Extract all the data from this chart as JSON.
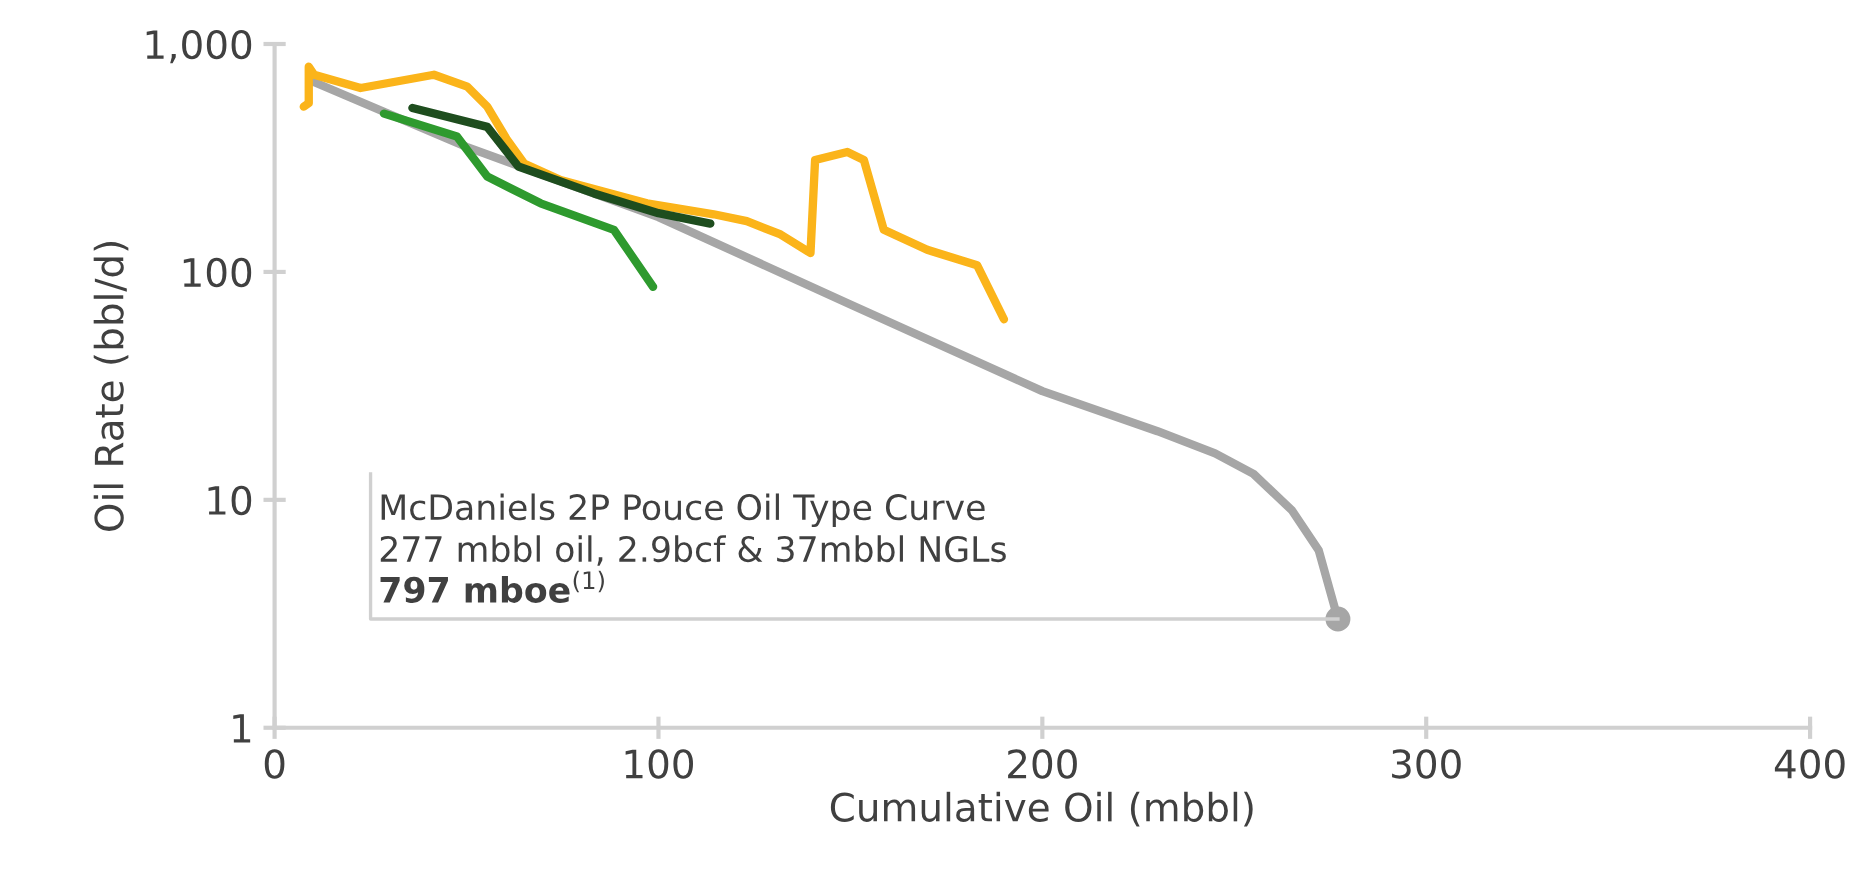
{
  "chart_data": {
    "type": "line",
    "xlabel": "Cumulative Oil (mbbl)",
    "ylabel": "Oil Rate (bbl/d)",
    "log": "y",
    "xlim": [
      0,
      400
    ],
    "xticks": [
      0,
      100,
      200,
      300,
      400
    ],
    "ylim": [
      1,
      1000
    ],
    "yticks": [
      1,
      10,
      100,
      {
        "value": 1000,
        "label": "1,000"
      }
    ],
    "grid": false,
    "legend": false,
    "series": [
      {
        "color": "#a6a6a6",
        "x": [
          9,
          50,
          100,
          150,
          200,
          230,
          245,
          255,
          265,
          272,
          277
        ],
        "values": [
          695,
          354,
          174,
          72,
          30,
          20,
          16,
          13,
          9,
          6,
          3
        ]
      },
      {
        "color": "#fbb41a",
        "x": [
          7.6,
          8.9,
          8.9,
          10.3,
          22.4,
          41.5,
          50.2,
          55.4,
          60.6,
          65,
          74.5,
          97,
          114.4,
          123,
          131.8,
          139.6,
          140.8,
          149.2,
          153.5,
          158.7,
          170,
          183,
          190
        ],
        "values": [
          531,
          550,
          795,
          733,
          641,
          733,
          650,
          531,
          379,
          299,
          253,
          200,
          179,
          167,
          146,
          121,
          310,
          336,
          310,
          153,
          125,
          107,
          62
        ]
      },
      {
        "color": "#1e4d1e",
        "x": [
          35.9,
          55.4,
          63.5,
          83.2,
          100,
          113.5
        ],
        "values": [
          524,
          433,
          290,
          221,
          181,
          163
        ]
      },
      {
        "color": "#2e9a2e",
        "x": [
          28.5,
          47.5,
          55.4,
          69.3,
          88.4,
          98.6
        ],
        "values": [
          495,
          393,
          262,
          200,
          153,
          86
        ]
      }
    ],
    "annotations": [
      {
        "text": "McDaniels 2P Pouce Oil Type Curve\n277 mbbl oil, 2.9bcf & 37mbbl NGLs\n797 mboe$^{(1)}$",
        "x": 277,
        "y": 3
      }
    ]
  }
}
